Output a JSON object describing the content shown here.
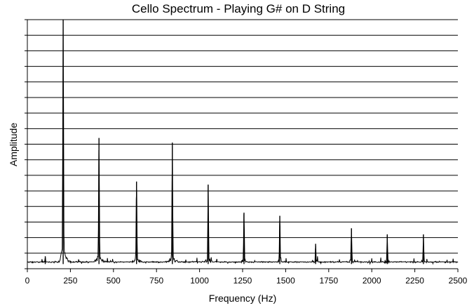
{
  "chart_data": {
    "type": "line",
    "title": "Cello Spectrum - Playing G# on D String",
    "xlabel": "Frequency (Hz)",
    "ylabel": "Amplitude",
    "xlim": [
      0,
      2500
    ],
    "ylim": [
      0,
      16
    ],
    "x_ticks": [
      "0",
      "250",
      "500",
      "750",
      "1000",
      "1250",
      "1500",
      "1750",
      "2000",
      "2250",
      "2500"
    ],
    "y_gridlines": 16,
    "y_tick_labels": false,
    "grid": "horizontal",
    "line_color": "#000000",
    "series": [
      {
        "peaks": [
          {
            "x": 104,
            "y": 0.8
          },
          {
            "x": 208,
            "y": 16.0
          },
          {
            "x": 416,
            "y": 8.4
          },
          {
            "x": 634,
            "y": 5.6
          },
          {
            "x": 842,
            "y": 8.1
          },
          {
            "x": 1050,
            "y": 5.4
          },
          {
            "x": 1258,
            "y": 3.6
          },
          {
            "x": 1466,
            "y": 3.4
          },
          {
            "x": 1674,
            "y": 1.6
          },
          {
            "x": 1882,
            "y": 2.6
          },
          {
            "x": 2090,
            "y": 2.2
          },
          {
            "x": 2300,
            "y": 2.2
          }
        ],
        "baseline": 0.3
      }
    ]
  }
}
